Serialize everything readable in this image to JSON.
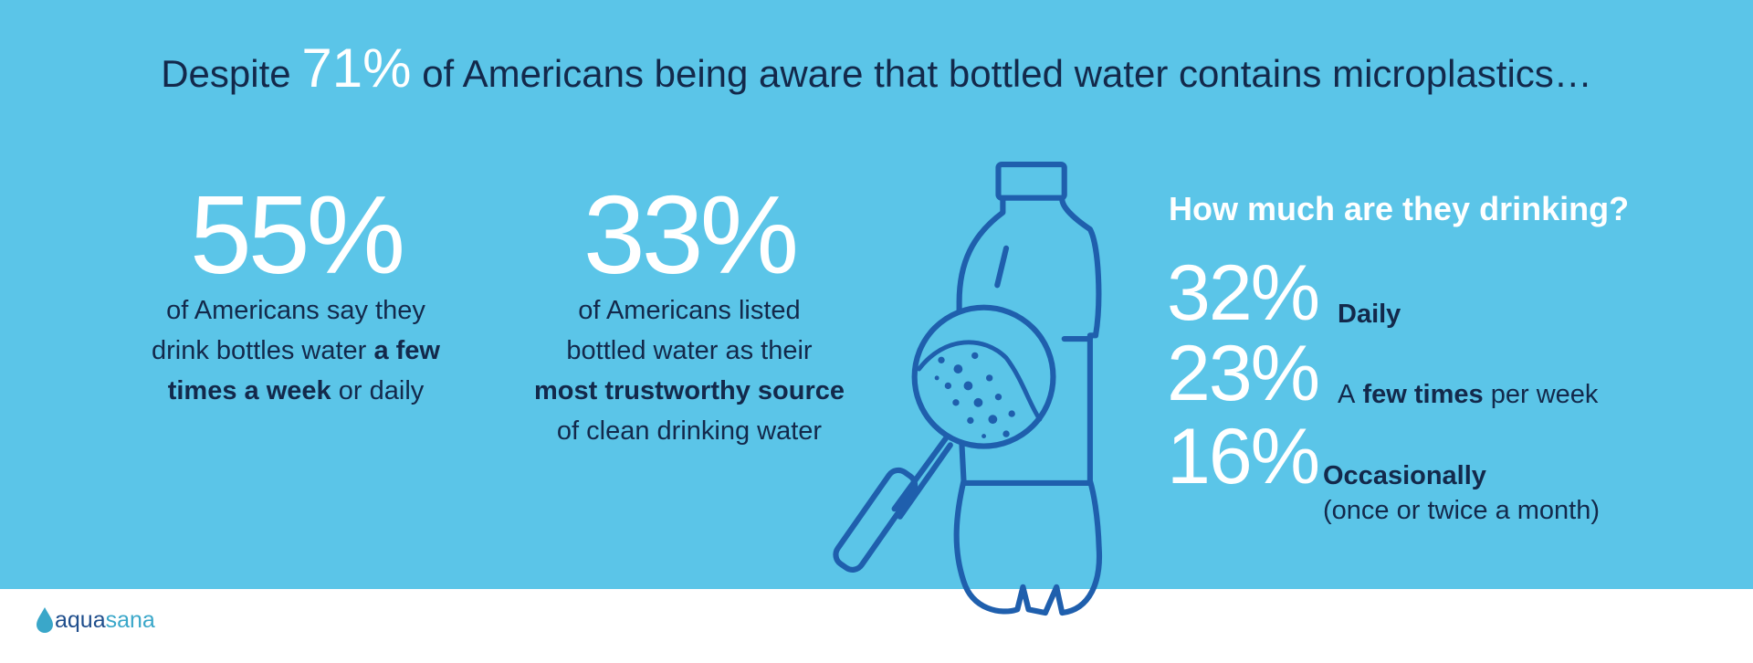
{
  "title": {
    "before": "Despite",
    "highlight": "71%",
    "after": "of Americans being aware that bottled water contains microplastics…"
  },
  "stats": [
    {
      "value": "55%",
      "lines": [
        [
          {
            "text": "of Americans say they",
            "bold": false
          }
        ],
        [
          {
            "text": "drink bottles water",
            "bold": false
          },
          {
            "text": "a few",
            "bold": true
          }
        ],
        [
          {
            "text": "times a week",
            "bold": true
          },
          {
            "text": "or daily",
            "bold": false
          }
        ]
      ]
    },
    {
      "value": "33%",
      "lines": [
        [
          {
            "text": "of Americans listed",
            "bold": false
          }
        ],
        [
          {
            "text": "bottled water as their",
            "bold": false
          }
        ],
        [
          {
            "text": "most trustworthy source",
            "bold": true
          }
        ],
        [
          {
            "text": "of clean drinking water",
            "bold": false
          }
        ]
      ]
    }
  ],
  "panel": {
    "heading": "How much are they drinking?",
    "items": [
      {
        "value": "32%",
        "lines": [
          [
            {
              "text": "Daily",
              "bold": true
            }
          ]
        ]
      },
      {
        "value": "23%",
        "lines": [
          [
            {
              "text": "A",
              "bold": false
            },
            {
              "text": "few times",
              "bold": true
            },
            {
              "text": "per week",
              "bold": false
            }
          ]
        ]
      },
      {
        "value": "16%",
        "lines": [
          [
            {
              "text": "Occasionally",
              "bold": true
            }
          ],
          [
            {
              "text": "(once or twice a month)",
              "bold": false
            }
          ]
        ]
      }
    ]
  },
  "logo": [
    "aqua",
    "sana"
  ]
}
